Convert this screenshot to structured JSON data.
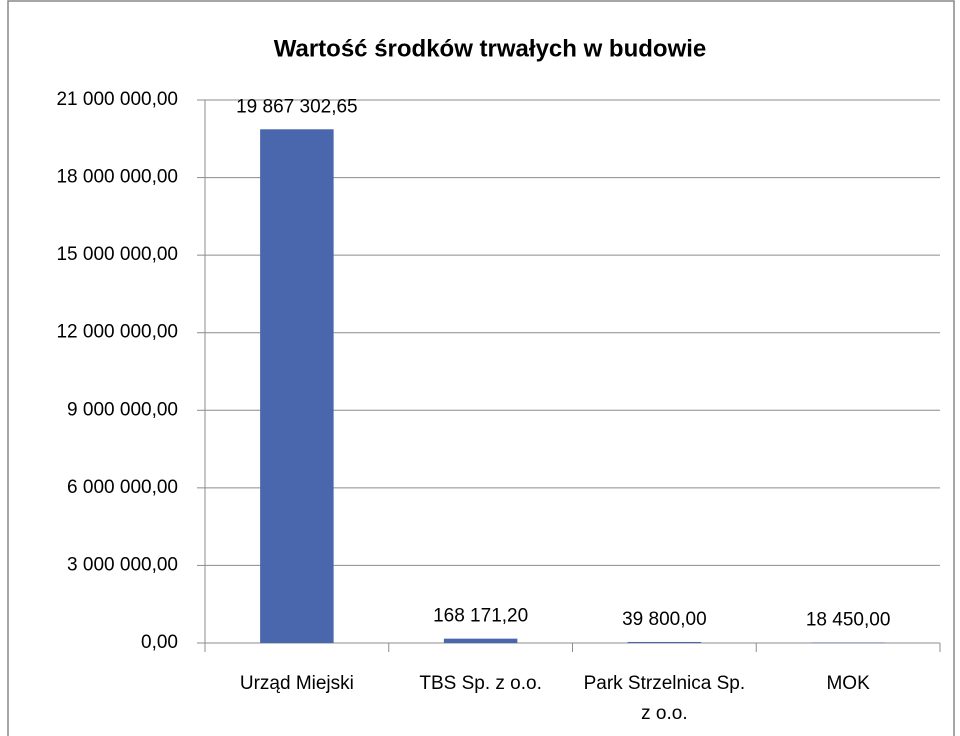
{
  "chart_data": {
    "type": "bar",
    "title": "Wartość środków trwałych w budowie",
    "categories": [
      "Urząd Miejski",
      "TBS Sp. z o.o.",
      "Park Strzelnica Sp. z o.o.",
      "MOK"
    ],
    "values": [
      19867302.65,
      168171.2,
      39800.0,
      18450.0
    ],
    "value_labels": [
      "19 867 302,65",
      "168 171,20",
      "39 800,00",
      "18 450,00"
    ],
    "color": "#4a66ac",
    "ylim": [
      0,
      21000000
    ],
    "yticks": [
      {
        "value": 0,
        "label": "0,00"
      },
      {
        "value": 3000000,
        "label": "3 000 000,00"
      },
      {
        "value": 6000000,
        "label": "6 000 000,00"
      },
      {
        "value": 9000000,
        "label": "9 000 000,00"
      },
      {
        "value": 12000000,
        "label": "12 000 000,00"
      },
      {
        "value": 15000000,
        "label": "15 000 000,00"
      },
      {
        "value": 18000000,
        "label": "18 000 000,00"
      },
      {
        "value": 21000000,
        "label": "21 000 000,00"
      }
    ],
    "grid": true
  }
}
